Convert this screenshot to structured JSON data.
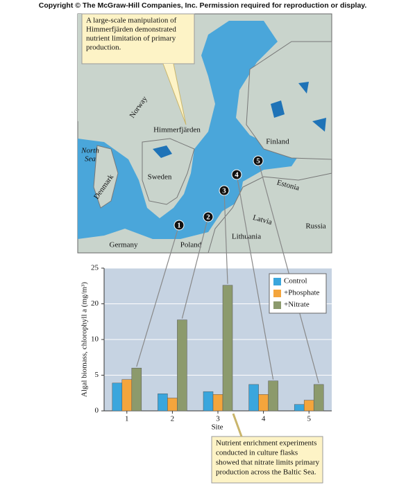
{
  "copyright": "Copyright © The McGraw-Hill Companies, Inc. Permission required for reproduction or display.",
  "map": {
    "callout": [
      "A large-scale manipulation of",
      "Himmerfjärden demonstrated",
      "nutrient limitation of primary",
      "production."
    ],
    "labels": [
      "Norway",
      "Himmerfjärden",
      "North",
      "Sea",
      "Finland",
      "Sweden",
      "Denmark",
      "Estonia",
      "Latvia",
      "Lithuania",
      "Russia",
      "Germany",
      "Poland"
    ],
    "sites": [
      "1",
      "2",
      "3",
      "4",
      "5"
    ]
  },
  "chart_data": {
    "type": "bar",
    "x_label": "Site",
    "y_label": "Algal biomass, chlorophyll a (mg/m³)",
    "categories": [
      "1",
      "2",
      "3",
      "4",
      "5"
    ],
    "series": [
      {
        "name": "Control",
        "color": "#3aa6dd",
        "values": [
          3.9,
          2.4,
          2.7,
          3.7,
          0.9
        ]
      },
      {
        "name": "+Phosphate",
        "color": "#f4a53c",
        "values": [
          4.4,
          1.8,
          2.3,
          2.3,
          1.5
        ]
      },
      {
        "name": "+Nitrate",
        "color": "#8c9a6c",
        "values": [
          6.0,
          15.5,
          22.6,
          4.2,
          3.7
        ]
      }
    ],
    "ylim": [
      0,
      25
    ],
    "yticks": [
      0,
      5,
      10,
      20,
      25
    ],
    "grid": true,
    "annotation": [
      "Nutrient enrichment experiments",
      "conducted in culture flasks",
      "showed that nitrate limits primary",
      "production across the Baltic Sea."
    ]
  }
}
